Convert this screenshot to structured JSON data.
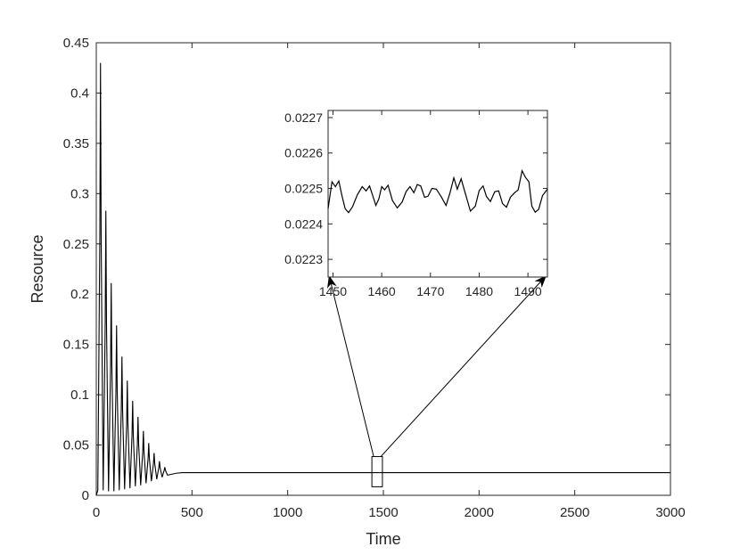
{
  "chart_data": [
    {
      "id": "main",
      "type": "line",
      "title": "",
      "xlabel": "Time",
      "ylabel": "Resource",
      "xlim": [
        0,
        3000
      ],
      "ylim": [
        0,
        0.45
      ],
      "xticks": [
        0,
        500,
        1000,
        1500,
        2000,
        2500,
        3000
      ],
      "xtick_labels": [
        "0",
        "500",
        "1000",
        "1500",
        "2000",
        "2500",
        "3000"
      ],
      "yticks": [
        0,
        0.05,
        0.1,
        0.15,
        0.2,
        0.25,
        0.3,
        0.35,
        0.4,
        0.45
      ],
      "ytick_labels": [
        "0",
        "0.05",
        "0.1",
        "0.15",
        "0.2",
        "0.25",
        "0.3",
        "0.35",
        "0.4",
        "0.45"
      ],
      "grid": false,
      "line_color": "#000000",
      "series": [
        {
          "description_of_dynamics": "damped oscillation settling to ~0.0225",
          "x_peaks": [
            22,
            50,
            78,
            106,
            134,
            162,
            190,
            218,
            246,
            274,
            302,
            330,
            358
          ],
          "peak_values": [
            0.43,
            0.283,
            0.211,
            0.169,
            0.138,
            0.114,
            0.094,
            0.078,
            0.064,
            0.052,
            0.042,
            0.034,
            0.028
          ],
          "trough_values": [
            0.005,
            0.004,
            0.004,
            0.005,
            0.006,
            0.007,
            0.009,
            0.01,
            0.012,
            0.014,
            0.016,
            0.018,
            0.02
          ],
          "steady_state": 0.0225,
          "steady_from_x": 420
        }
      ],
      "zoom_box": {
        "x": [
          1440,
          1495
        ],
        "y": [
          0.0085,
          0.0385
        ]
      }
    },
    {
      "id": "inset",
      "type": "line",
      "title": "",
      "xlabel": "",
      "ylabel": "",
      "xlim": [
        1449,
        1494
      ],
      "ylim": [
        0.02225,
        0.02272
      ],
      "xticks": [
        1450,
        1460,
        1470,
        1480,
        1490
      ],
      "xtick_labels": [
        "1450",
        "1460",
        "1470",
        "1480",
        "1490"
      ],
      "yticks": [
        0.0223,
        0.0224,
        0.0225,
        0.0226,
        0.0227
      ],
      "ytick_labels": [
        "0.0223",
        "0.0224",
        "0.0225",
        "0.0226",
        "0.0227"
      ],
      "grid": false,
      "line_color": "#000000",
      "series": [
        {
          "x": [
            1449,
            1449.8,
            1450.5,
            1451.2,
            1451.8,
            1452.5,
            1453.2,
            1454,
            1455,
            1456,
            1456.8,
            1457.5,
            1458.2,
            1458.8,
            1459.4,
            1460,
            1460.6,
            1461.3,
            1462.2,
            1463.2,
            1464.2,
            1465,
            1465.8,
            1466.6,
            1467.3,
            1468,
            1468.8,
            1469.5,
            1470.3,
            1471.2,
            1472.2,
            1473.2,
            1474,
            1474.8,
            1475.5,
            1476.3,
            1477.2,
            1478.2,
            1479.2,
            1480,
            1480.8,
            1481.5,
            1482.3,
            1483.2,
            1484,
            1484.8,
            1485.6,
            1486.4,
            1487.2,
            1488,
            1488.8,
            1489.5,
            1490.2,
            1490.8,
            1491.5,
            1492.2,
            1493,
            1494
          ],
          "y": [
            0.022443,
            0.022519,
            0.022505,
            0.022521,
            0.022482,
            0.022443,
            0.022432,
            0.022448,
            0.022482,
            0.022505,
            0.022493,
            0.022507,
            0.022478,
            0.022452,
            0.02247,
            0.022505,
            0.022496,
            0.022509,
            0.022466,
            0.022445,
            0.022462,
            0.022491,
            0.022505,
            0.022488,
            0.022511,
            0.022507,
            0.022475,
            0.022478,
            0.0225,
            0.022498,
            0.022477,
            0.022452,
            0.022487,
            0.02253,
            0.022498,
            0.022527,
            0.022484,
            0.022436,
            0.02245,
            0.022494,
            0.022507,
            0.022477,
            0.022463,
            0.022491,
            0.022493,
            0.022457,
            0.022447,
            0.022475,
            0.022487,
            0.022496,
            0.02255,
            0.022531,
            0.022519,
            0.02245,
            0.022433,
            0.022441,
            0.02248,
            0.022498
          ]
        }
      ]
    }
  ]
}
